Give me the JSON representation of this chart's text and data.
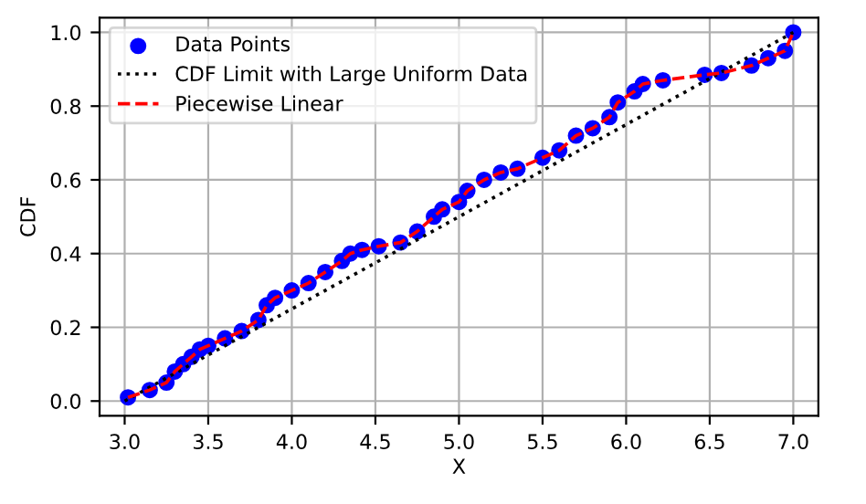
{
  "chart_data": {
    "type": "scatter",
    "xlabel": "X",
    "ylabel": "CDF",
    "grid": true,
    "legend": "top left",
    "xlim": [
      2.85,
      7.15
    ],
    "ylim": [
      -0.04,
      1.04
    ],
    "xticks": [
      {
        "value": 3,
        "label": "3.0"
      },
      {
        "value": 3.5,
        "label": "3.5"
      },
      {
        "value": 4,
        "label": "4.0"
      },
      {
        "value": 4.5,
        "label": "4.5"
      },
      {
        "value": 5,
        "label": "5.0"
      },
      {
        "value": 5.5,
        "label": "5.5"
      },
      {
        "value": 6,
        "label": "6.0"
      },
      {
        "value": 6.5,
        "label": "6.5"
      },
      {
        "value": 7,
        "label": "7.0"
      }
    ],
    "yticks": [
      {
        "value": 0,
        "label": "0.0"
      },
      {
        "value": 0.2,
        "label": "0.2"
      },
      {
        "value": 0.4,
        "label": "0.4"
      },
      {
        "value": 0.6,
        "label": "0.6"
      },
      {
        "value": 0.8,
        "label": "0.8"
      },
      {
        "value": 1,
        "label": "1.0"
      }
    ],
    "series": [
      {
        "name": "Data Points",
        "marker": "circle",
        "color": "#0000ff",
        "x": [
          3.02,
          3.15,
          3.25,
          3.3,
          3.35,
          3.4,
          3.45,
          3.5,
          3.6,
          3.7,
          3.8,
          3.85,
          3.9,
          4.0,
          4.1,
          4.2,
          4.3,
          4.35,
          4.42,
          4.52,
          4.65,
          4.75,
          4.85,
          4.9,
          5.0,
          5.05,
          5.15,
          5.25,
          5.35,
          5.5,
          5.6,
          5.7,
          5.8,
          5.9,
          5.95,
          6.05,
          6.1,
          6.22,
          6.47,
          6.57,
          6.75,
          6.85,
          6.95,
          7.0
        ],
        "values": [
          0.01,
          0.03,
          0.05,
          0.08,
          0.1,
          0.12,
          0.14,
          0.15,
          0.17,
          0.19,
          0.22,
          0.26,
          0.28,
          0.3,
          0.32,
          0.35,
          0.38,
          0.4,
          0.41,
          0.42,
          0.43,
          0.46,
          0.5,
          0.52,
          0.54,
          0.57,
          0.6,
          0.62,
          0.63,
          0.66,
          0.68,
          0.72,
          0.74,
          0.77,
          0.81,
          0.84,
          0.86,
          0.87,
          0.885,
          0.89,
          0.91,
          0.93,
          0.95,
          1.0
        ]
      },
      {
        "name": "CDF Limit with Large Uniform Data",
        "type": "line",
        "line_style": "dotted",
        "color": "#000000",
        "x": [
          3,
          7
        ],
        "values": [
          0,
          1
        ]
      },
      {
        "name": "Piecewise Linear",
        "type": "line",
        "line_style": "dashed",
        "color": "#ff0000",
        "x": [
          3.02,
          3.15,
          3.25,
          3.3,
          3.35,
          3.4,
          3.45,
          3.5,
          3.6,
          3.7,
          3.8,
          3.85,
          3.9,
          4.0,
          4.1,
          4.2,
          4.3,
          4.35,
          4.42,
          4.52,
          4.65,
          4.75,
          4.85,
          4.9,
          5.0,
          5.05,
          5.15,
          5.25,
          5.35,
          5.5,
          5.6,
          5.7,
          5.8,
          5.9,
          5.95,
          6.05,
          6.1,
          6.22,
          6.47,
          6.57,
          6.75,
          6.85,
          6.95,
          7.0
        ],
        "values": [
          0.01,
          0.03,
          0.05,
          0.08,
          0.1,
          0.12,
          0.14,
          0.15,
          0.17,
          0.19,
          0.22,
          0.26,
          0.28,
          0.3,
          0.32,
          0.35,
          0.38,
          0.4,
          0.41,
          0.42,
          0.43,
          0.46,
          0.5,
          0.52,
          0.54,
          0.57,
          0.6,
          0.62,
          0.63,
          0.66,
          0.68,
          0.72,
          0.74,
          0.77,
          0.81,
          0.84,
          0.86,
          0.87,
          0.885,
          0.89,
          0.91,
          0.93,
          0.95,
          1.0
        ]
      }
    ]
  }
}
